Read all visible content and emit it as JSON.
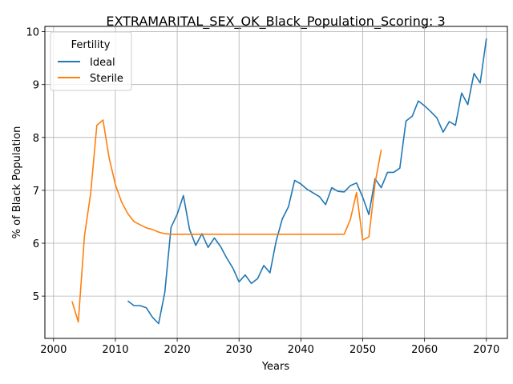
{
  "chart_data": {
    "type": "line",
    "title": "EXTRAMARITAL_SEX_OK_Black_Population_Scoring: 3",
    "xlabel": "Years",
    "ylabel": "% of Black Population",
    "xlim": [
      1998.6,
      2073.4
    ],
    "ylim": [
      4.2,
      10.1
    ],
    "x_ticks": [
      2000,
      2010,
      2020,
      2030,
      2040,
      2050,
      2060,
      2070
    ],
    "y_ticks": [
      5,
      6,
      7,
      8,
      9,
      10
    ],
    "grid": true,
    "legend": {
      "title": "Fertility",
      "placement": "upper-left"
    },
    "series": [
      {
        "name": "Ideal",
        "color": "#1f77b4",
        "x": [
          2012,
          2013,
          2014,
          2015,
          2016,
          2017,
          2018,
          2019,
          2020,
          2021,
          2022,
          2023,
          2024,
          2025,
          2026,
          2027,
          2028,
          2029,
          2030,
          2031,
          2032,
          2033,
          2034,
          2035,
          2036,
          2037,
          2038,
          2039,
          2040,
          2041,
          2042,
          2043,
          2044,
          2045,
          2046,
          2047,
          2048,
          2049,
          2050,
          2051,
          2052,
          2053,
          2054,
          2055,
          2056,
          2057,
          2058,
          2059,
          2060,
          2061,
          2062,
          2063,
          2064,
          2065,
          2066,
          2067,
          2068,
          2069,
          2070
        ],
        "y": [
          4.91,
          4.82,
          4.82,
          4.78,
          4.6,
          4.48,
          5.07,
          6.3,
          6.55,
          6.9,
          6.26,
          5.96,
          6.18,
          5.92,
          6.1,
          5.94,
          5.72,
          5.53,
          5.27,
          5.4,
          5.24,
          5.33,
          5.58,
          5.44,
          6.04,
          6.46,
          6.69,
          7.19,
          7.12,
          7.02,
          6.95,
          6.88,
          6.73,
          7.05,
          6.98,
          6.97,
          7.09,
          7.14,
          6.87,
          6.54,
          7.22,
          7.05,
          7.34,
          7.34,
          7.42,
          8.31,
          8.4,
          8.69,
          8.6,
          8.49,
          8.37,
          8.1,
          8.3,
          8.23,
          8.84,
          8.62,
          9.21,
          9.03,
          9.87
        ]
      },
      {
        "name": "Sterile",
        "color": "#ff7f0e",
        "x": [
          2003,
          2004,
          2005,
          2006,
          2007,
          2008,
          2009,
          2010,
          2011,
          2012,
          2013,
          2014,
          2015,
          2016,
          2017,
          2018,
          2019,
          2020,
          2025,
          2030,
          2035,
          2040,
          2045,
          2047,
          2048,
          2049,
          2050,
          2051,
          2052,
          2053
        ],
        "y": [
          4.9,
          4.51,
          6.14,
          6.94,
          8.23,
          8.33,
          7.61,
          7.11,
          6.78,
          6.56,
          6.41,
          6.35,
          6.29,
          6.26,
          6.21,
          6.18,
          6.17,
          6.17,
          6.17,
          6.17,
          6.17,
          6.17,
          6.17,
          6.17,
          6.45,
          6.96,
          6.06,
          6.12,
          7.13,
          7.77
        ]
      }
    ]
  }
}
